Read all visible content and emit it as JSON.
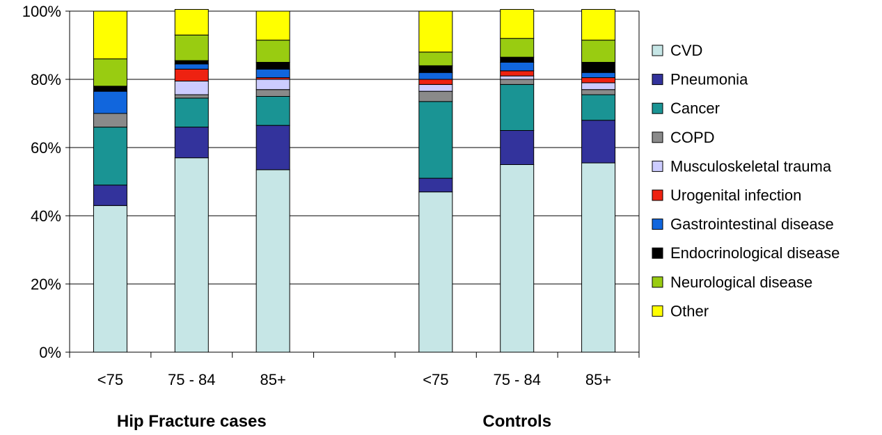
{
  "chart_data": {
    "type": "bar",
    "stacked": true,
    "percent": true,
    "categories": [
      "<75",
      "75 - 84",
      "85+",
      "<75",
      "75 - 84",
      "85+"
    ],
    "groups": [
      {
        "label": "Hip Fracture cases",
        "categories": [
          0,
          1,
          2
        ]
      },
      {
        "label": "Controls",
        "categories": [
          3,
          4,
          5
        ]
      }
    ],
    "yticks": [
      "0%",
      "20%",
      "40%",
      "60%",
      "80%",
      "100%"
    ],
    "ylim": [
      0,
      100
    ],
    "grid": true,
    "legend": "right",
    "series": [
      {
        "name": "CVD",
        "color": "#c6e6e6",
        "values": [
          43,
          57,
          53.5,
          47,
          55,
          55.5
        ]
      },
      {
        "name": "Pneumonia",
        "color": "#33339c",
        "values": [
          6,
          9,
          13,
          4,
          10,
          12.5
        ]
      },
      {
        "name": "Cancer",
        "color": "#1a9494",
        "values": [
          17,
          8.5,
          8.5,
          22.5,
          13.5,
          7.5
        ]
      },
      {
        "name": "COPD",
        "color": "#8a8a8a",
        "values": [
          4,
          1,
          2,
          3,
          1.5,
          1.5
        ]
      },
      {
        "name": "Musculoskeletal trauma",
        "color": "#ccccff",
        "values": [
          0,
          4,
          3,
          2,
          1,
          2
        ]
      },
      {
        "name": "Urogenital infection",
        "color": "#ee2211",
        "values": [
          0,
          3.5,
          0.5,
          1.5,
          1.5,
          1.5
        ]
      },
      {
        "name": "Gastrointestinal disease",
        "color": "#1166dd",
        "values": [
          6.5,
          1.5,
          2.5,
          2,
          2.5,
          1.5
        ]
      },
      {
        "name": "Endocrinological disease",
        "color": "#000000",
        "values": [
          1.5,
          1,
          2,
          2,
          1.5,
          3
        ]
      },
      {
        "name": "Neurological disease",
        "color": "#99cc11",
        "values": [
          8,
          7.5,
          6.5,
          4,
          5.5,
          6.5
        ]
      },
      {
        "name": "Other",
        "color": "#ffff00",
        "values": [
          14,
          7.5,
          8.5,
          12,
          8.5,
          9
        ]
      }
    ]
  }
}
